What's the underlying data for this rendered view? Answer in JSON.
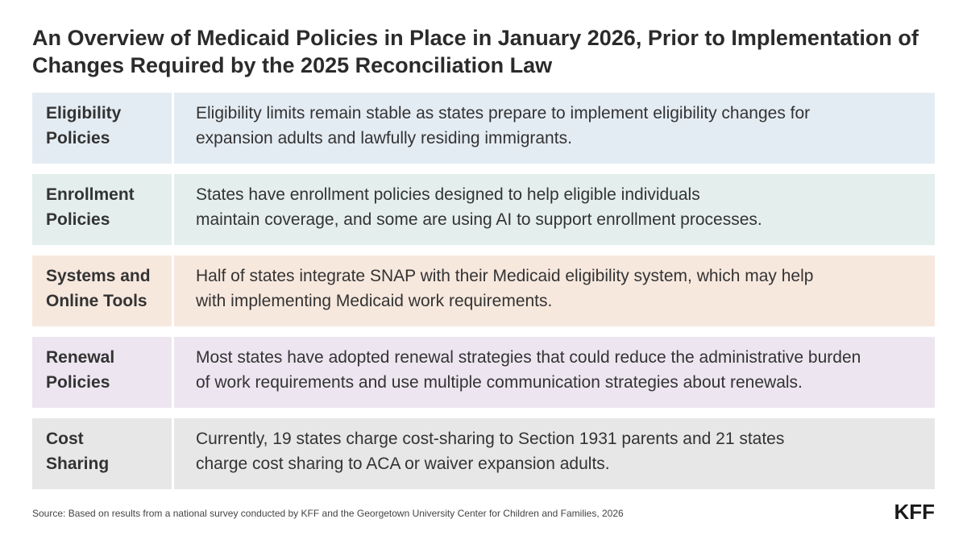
{
  "title_line1": "An Overview of Medicaid Policies in Place in January 2026, Prior to Implementation of",
  "title_line2": "Changes Required by the 2025 Reconciliation Law",
  "rows": [
    {
      "label1": "Eligibility",
      "label2": "Policies",
      "desc1": "Eligibility limits remain stable as states prepare to implement eligibility changes for",
      "desc2": "expansion adults and lawfully residing immigrants.",
      "color": "#e4ecf3"
    },
    {
      "label1": "Enrollment",
      "label2": "Policies",
      "desc1": "States have enrollment policies designed to help eligible individuals",
      "desc2": "maintain coverage, and some are using AI to support enrollment processes.",
      "color": "#e4eeed"
    },
    {
      "label1": "Systems and",
      "label2": "Online Tools",
      "desc1": "Half of states integrate SNAP with their Medicaid eligibility system, which may help",
      "desc2": "with implementing Medicaid work requirements.",
      "color": "#f7e8de"
    },
    {
      "label1": "Renewal",
      "label2": "Policies",
      "desc1": "Most states have adopted renewal strategies that could reduce the administrative burden",
      "desc2": "of work requirements and use multiple communication strategies about renewals.",
      "color": "#ede6f0"
    },
    {
      "label1": "Cost",
      "label2": "Sharing",
      "desc1": "Currently, 19 states charge cost-sharing to Section 1931 parents and 21 states",
      "desc2": "charge cost sharing to ACA or waiver expansion adults.",
      "color": "#e7e7e7"
    }
  ],
  "source": "Source: Based on results from a national survey conducted by KFF and the Georgetown University Center for Children and Families, 2026",
  "logo": "KFF"
}
